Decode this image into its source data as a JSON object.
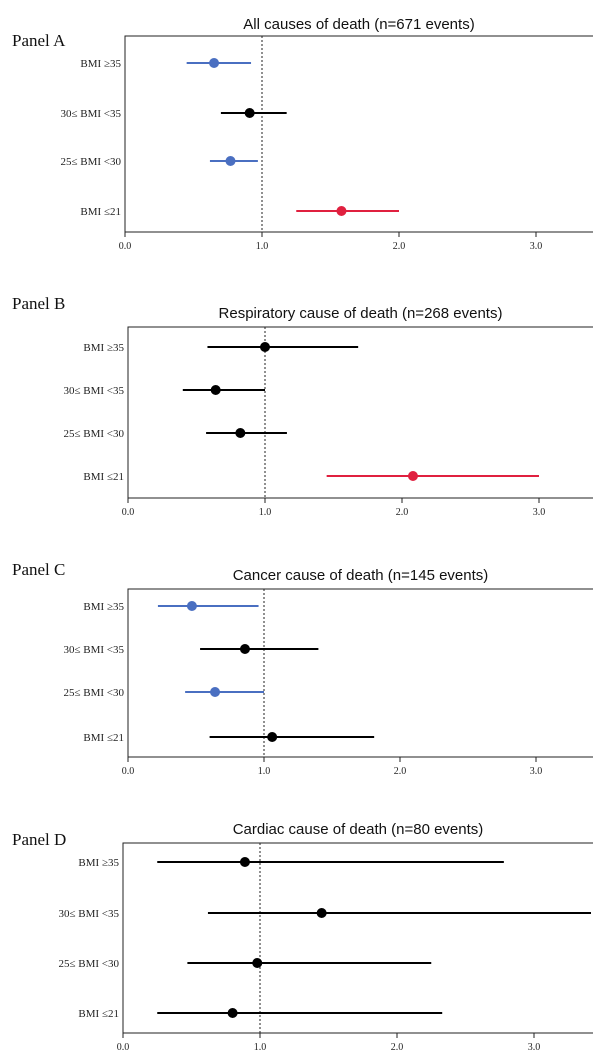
{
  "colors": {
    "significant_low": "#4a6fc1",
    "significant_high": "#e0203f",
    "nonsignificant": "#000000"
  },
  "chart_data": [
    {
      "type": "scatter",
      "panel_label": "Panel A",
      "title": "All causes of death (n=671 events)",
      "xlim": [
        0,
        3.5
      ],
      "x_ticks": [
        "0.0",
        "1.0",
        "2.0",
        "3.0"
      ],
      "x_tick_values": [
        0,
        1,
        2,
        3
      ],
      "reference_line": 1.0,
      "categories": [
        "BMI ≥35",
        "30≤ BMI <35",
        "25≤ BMI <30",
        "BMI ≤21"
      ],
      "estimate": [
        0.65,
        0.91,
        0.77,
        1.58
      ],
      "ci_low": [
        0.45,
        0.7,
        0.62,
        1.25
      ],
      "ci_high": [
        0.92,
        1.18,
        0.97,
        2.0
      ],
      "color": [
        "significant_low",
        "nonsignificant",
        "significant_low",
        "significant_high"
      ]
    },
    {
      "type": "scatter",
      "panel_label": "Panel B",
      "title": "Respiratory cause of death (n=268 events)",
      "xlim": [
        0,
        3.5
      ],
      "x_ticks": [
        "0.0",
        "1.0",
        "2.0",
        "3.0"
      ],
      "x_tick_values": [
        0,
        1,
        2,
        3
      ],
      "reference_line": 1.0,
      "categories": [
        "BMI ≥35",
        "30≤ BMI <35",
        "25≤ BMI <30",
        "BMI ≤21"
      ],
      "estimate": [
        1.0,
        0.64,
        0.82,
        2.08
      ],
      "ci_low": [
        0.58,
        0.4,
        0.57,
        1.45
      ],
      "ci_high": [
        1.68,
        1.0,
        1.16,
        3.0
      ],
      "color": [
        "nonsignificant",
        "nonsignificant",
        "nonsignificant",
        "significant_high"
      ]
    },
    {
      "type": "scatter",
      "panel_label": "Panel C",
      "title": "Cancer cause of death (n=145 events)",
      "xlim": [
        0,
        3.5
      ],
      "x_ticks": [
        "0.0",
        "1.0",
        "2.0",
        "3.0"
      ],
      "x_tick_values": [
        0,
        1,
        2,
        3
      ],
      "reference_line": 1.0,
      "categories": [
        "BMI ≥35",
        "30≤ BMI <35",
        "25≤ BMI <30",
        "BMI ≤21"
      ],
      "estimate": [
        0.47,
        0.86,
        0.64,
        1.06
      ],
      "ci_low": [
        0.22,
        0.53,
        0.42,
        0.6
      ],
      "ci_high": [
        0.96,
        1.4,
        1.0,
        1.81
      ],
      "color": [
        "significant_low",
        "nonsignificant",
        "significant_low",
        "nonsignificant"
      ]
    },
    {
      "type": "scatter",
      "panel_label": "Panel D",
      "title": "Cardiac cause of death (n=80 events)",
      "xlim": [
        0,
        3.5
      ],
      "x_ticks": [
        "0.0",
        "1.0",
        "2.0",
        "3.0"
      ],
      "x_tick_values": [
        0,
        1,
        2,
        3
      ],
      "reference_line": 1.0,
      "categories": [
        "BMI ≥35",
        "30≤ BMI <35",
        "25≤ BMI <30",
        "BMI ≤21"
      ],
      "estimate": [
        0.89,
        1.45,
        0.98,
        0.8
      ],
      "ci_low": [
        0.25,
        0.62,
        0.47,
        0.25
      ],
      "ci_high": [
        2.78,
        3.5,
        2.25,
        2.33
      ],
      "color": [
        "nonsignificant",
        "nonsignificant",
        "nonsignificant",
        "nonsignificant"
      ]
    }
  ]
}
